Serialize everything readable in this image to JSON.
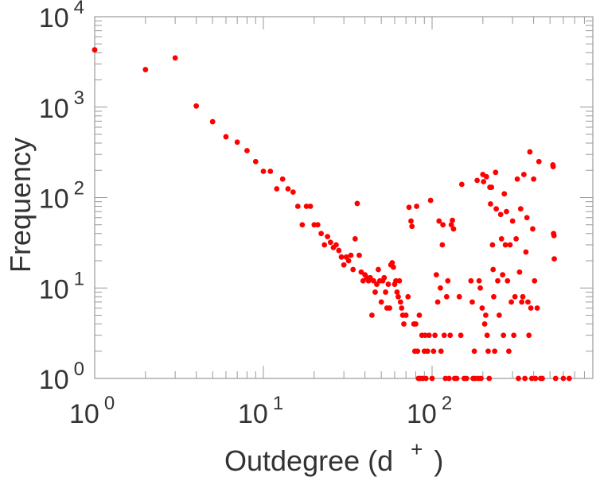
{
  "chart_data": {
    "type": "scatter",
    "xlabel": "Outdegree (d",
    "xlabel_superscript": "+",
    "xlabel_close": ")",
    "ylabel": "Frequency",
    "xscale": "log",
    "yscale": "log",
    "xlim": [
      1,
      750
    ],
    "ylim": [
      1,
      10000
    ],
    "x_ticks": [
      {
        "base": "10",
        "exp": "0"
      },
      {
        "base": "10",
        "exp": "1"
      },
      {
        "base": "10",
        "exp": "2"
      }
    ],
    "y_ticks": [
      {
        "base": "10",
        "exp": "0"
      },
      {
        "base": "10",
        "exp": "1"
      },
      {
        "base": "10",
        "exp": "2"
      },
      {
        "base": "10",
        "exp": "3"
      },
      {
        "base": "10",
        "exp": "4"
      }
    ],
    "grid": false,
    "legend": "none",
    "marker_color": "#ff0000",
    "points": [
      [
        1,
        4300
      ],
      [
        2,
        2600
      ],
      [
        3,
        3500
      ],
      [
        4,
        1030
      ],
      [
        5,
        690
      ],
      [
        6,
        470
      ],
      [
        7,
        410
      ],
      [
        8,
        330
      ],
      [
        9,
        250
      ],
      [
        10,
        195
      ],
      [
        11,
        195
      ],
      [
        12,
        125
      ],
      [
        13,
        160
      ],
      [
        14,
        125
      ],
      [
        15,
        115
      ],
      [
        16,
        80
      ],
      [
        17,
        50
      ],
      [
        18,
        80
      ],
      [
        19,
        80
      ],
      [
        20,
        50
      ],
      [
        21,
        50
      ],
      [
        22,
        40
      ],
      [
        23,
        30
      ],
      [
        24,
        37
      ],
      [
        25,
        32
      ],
      [
        26,
        28
      ],
      [
        27,
        30
      ],
      [
        28,
        26
      ],
      [
        29,
        22
      ],
      [
        30,
        18
      ],
      [
        31,
        22
      ],
      [
        32,
        20
      ],
      [
        33,
        23
      ],
      [
        34,
        16
      ],
      [
        35,
        35
      ],
      [
        36,
        86
      ],
      [
        37,
        23
      ],
      [
        38,
        15
      ],
      [
        39,
        12
      ],
      [
        40,
        14
      ],
      [
        41,
        13
      ],
      [
        42,
        12
      ],
      [
        43,
        13
      ],
      [
        44,
        5
      ],
      [
        45,
        12
      ],
      [
        46,
        9
      ],
      [
        47,
        11
      ],
      [
        48,
        16
      ],
      [
        49,
        12
      ],
      [
        50,
        7
      ],
      [
        51,
        12
      ],
      [
        52,
        13
      ],
      [
        53,
        9
      ],
      [
        54,
        6
      ],
      [
        55,
        11
      ],
      [
        56,
        6
      ],
      [
        57,
        18
      ],
      [
        58,
        19
      ],
      [
        59,
        17
      ],
      [
        60,
        11
      ],
      [
        61,
        12
      ],
      [
        62,
        9
      ],
      [
        63,
        8
      ],
      [
        64,
        12
      ],
      [
        65,
        7
      ],
      [
        66,
        6
      ],
      [
        67,
        5
      ],
      [
        68,
        4
      ],
      [
        70,
        5
      ],
      [
        72,
        8
      ],
      [
        73,
        78
      ],
      [
        75,
        55
      ],
      [
        76,
        48
      ],
      [
        78,
        4
      ],
      [
        79,
        2
      ],
      [
        80,
        4
      ],
      [
        81,
        80
      ],
      [
        82,
        2
      ],
      [
        83,
        1
      ],
      [
        84,
        5
      ],
      [
        85,
        1
      ],
      [
        87,
        3
      ],
      [
        88,
        1
      ],
      [
        90,
        2
      ],
      [
        91,
        3
      ],
      [
        92,
        1
      ],
      [
        94,
        2
      ],
      [
        96,
        3
      ],
      [
        98,
        93
      ],
      [
        100,
        1
      ],
      [
        102,
        2
      ],
      [
        104,
        3
      ],
      [
        106,
        14
      ],
      [
        108,
        7
      ],
      [
        110,
        55
      ],
      [
        112,
        10
      ],
      [
        113,
        2
      ],
      [
        115,
        30
      ],
      [
        116,
        50
      ],
      [
        118,
        3
      ],
      [
        120,
        1
      ],
      [
        122,
        8
      ],
      [
        124,
        12
      ],
      [
        126,
        1
      ],
      [
        128,
        3
      ],
      [
        130,
        50
      ],
      [
        132,
        56
      ],
      [
        134,
        45
      ],
      [
        136,
        1
      ],
      [
        140,
        1
      ],
      [
        145,
        8
      ],
      [
        148,
        3
      ],
      [
        150,
        140
      ],
      [
        155,
        1
      ],
      [
        160,
        1
      ],
      [
        170,
        12
      ],
      [
        173,
        7
      ],
      [
        175,
        1
      ],
      [
        178,
        2
      ],
      [
        180,
        1
      ],
      [
        185,
        155
      ],
      [
        188,
        1
      ],
      [
        190,
        12
      ],
      [
        193,
        10
      ],
      [
        195,
        1
      ],
      [
        198,
        6
      ],
      [
        200,
        180
      ],
      [
        202,
        150
      ],
      [
        205,
        4
      ],
      [
        208,
        5
      ],
      [
        210,
        170
      ],
      [
        212,
        3
      ],
      [
        215,
        2
      ],
      [
        218,
        1
      ],
      [
        220,
        130
      ],
      [
        222,
        85
      ],
      [
        225,
        130
      ],
      [
        228,
        30
      ],
      [
        230,
        16
      ],
      [
        232,
        8
      ],
      [
        235,
        2
      ],
      [
        238,
        190
      ],
      [
        240,
        75
      ],
      [
        245,
        12
      ],
      [
        250,
        5
      ],
      [
        255,
        65
      ],
      [
        258,
        35
      ],
      [
        262,
        14
      ],
      [
        265,
        3
      ],
      [
        268,
        110
      ],
      [
        272,
        30
      ],
      [
        276,
        70
      ],
      [
        280,
        12
      ],
      [
        285,
        2
      ],
      [
        290,
        30
      ],
      [
        295,
        7
      ],
      [
        300,
        55
      ],
      [
        305,
        3
      ],
      [
        310,
        8
      ],
      [
        315,
        35
      ],
      [
        320,
        160
      ],
      [
        325,
        1
      ],
      [
        330,
        15
      ],
      [
        335,
        75
      ],
      [
        340,
        7
      ],
      [
        345,
        8
      ],
      [
        350,
        180
      ],
      [
        355,
        1
      ],
      [
        360,
        25
      ],
      [
        365,
        60
      ],
      [
        370,
        7
      ],
      [
        375,
        3
      ],
      [
        380,
        320
      ],
      [
        385,
        6
      ],
      [
        390,
        1
      ],
      [
        395,
        45
      ],
      [
        400,
        160
      ],
      [
        405,
        12
      ],
      [
        410,
        1
      ],
      [
        420,
        6
      ],
      [
        430,
        250
      ],
      [
        440,
        1
      ],
      [
        450,
        1
      ],
      [
        520,
        230
      ],
      [
        522,
        220
      ],
      [
        525,
        40
      ],
      [
        528,
        38
      ],
      [
        530,
        21
      ],
      [
        540,
        1
      ],
      [
        600,
        1
      ],
      [
        650,
        1
      ]
    ]
  }
}
